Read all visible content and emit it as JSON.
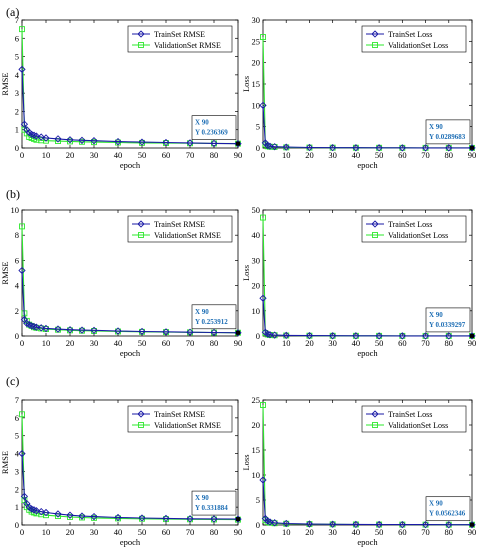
{
  "panels": [
    {
      "label": "(a)"
    },
    {
      "label": "(b)"
    },
    {
      "label": "(c)"
    }
  ],
  "colors": {
    "train": "#1a1aa6",
    "validation": "#2ee82e",
    "axis": "#000000",
    "tooltip_text": "#1f6fb5"
  },
  "chart_data": [
    {
      "type": "line",
      "panel": "(a)",
      "title": "",
      "xlabel": "epoch",
      "ylabel": "RMSE",
      "xlim": [
        0,
        90
      ],
      "ylim": [
        0,
        7
      ],
      "xticks": [
        0,
        10,
        20,
        30,
        40,
        50,
        60,
        70,
        80,
        90
      ],
      "yticks": [
        0,
        1,
        2,
        3,
        4,
        5,
        6,
        7
      ],
      "legend": "top-right",
      "series": [
        {
          "name": "TrainSet RMSE",
          "marker": "diamond",
          "x": [
            0,
            1,
            2,
            3,
            4,
            5,
            6,
            8,
            10,
            15,
            20,
            25,
            30,
            40,
            50,
            60,
            70,
            80,
            90
          ],
          "y": [
            4.3,
            1.3,
            1.0,
            0.85,
            0.75,
            0.7,
            0.65,
            0.6,
            0.55,
            0.5,
            0.45,
            0.42,
            0.4,
            0.35,
            0.32,
            0.3,
            0.28,
            0.25,
            0.236
          ]
        },
        {
          "name": "ValidationSet RMSE",
          "marker": "square",
          "x": [
            0,
            1,
            2,
            3,
            4,
            5,
            6,
            8,
            10,
            15,
            20,
            25,
            30,
            40,
            50,
            60,
            70,
            80,
            90
          ],
          "y": [
            6.5,
            1.0,
            0.8,
            0.6,
            0.55,
            0.5,
            0.45,
            0.42,
            0.4,
            0.38,
            0.36,
            0.34,
            0.32,
            0.3,
            0.28,
            0.27,
            0.26,
            0.25,
            0.24
          ]
        }
      ],
      "datatip": {
        "x": "X 90",
        "y": "Y 0.236369"
      }
    },
    {
      "type": "line",
      "panel": "(a)",
      "title": "",
      "xlabel": "epoch",
      "ylabel": "Loss",
      "xlim": [
        0,
        90
      ],
      "ylim": [
        0,
        30
      ],
      "xticks": [
        0,
        10,
        20,
        30,
        40,
        50,
        60,
        70,
        80,
        90
      ],
      "yticks": [
        0,
        5,
        10,
        15,
        20,
        25,
        30
      ],
      "legend": "top-right",
      "series": [
        {
          "name": "TrainSet Loss",
          "marker": "diamond",
          "x": [
            0,
            1,
            2,
            3,
            5,
            10,
            20,
            30,
            40,
            50,
            60,
            70,
            80,
            90
          ],
          "y": [
            10.0,
            1.2,
            0.6,
            0.4,
            0.3,
            0.2,
            0.12,
            0.08,
            0.06,
            0.05,
            0.04,
            0.035,
            0.03,
            0.029
          ]
        },
        {
          "name": "ValidationSet Loss",
          "marker": "square",
          "x": [
            0,
            1,
            2,
            3,
            5,
            10,
            20,
            30,
            40,
            50,
            60,
            70,
            80,
            90
          ],
          "y": [
            26.0,
            0.8,
            0.4,
            0.3,
            0.25,
            0.15,
            0.1,
            0.08,
            0.06,
            0.05,
            0.04,
            0.035,
            0.03,
            0.03
          ]
        }
      ],
      "datatip": {
        "x": "X 90",
        "y": "Y 0.0289683"
      }
    },
    {
      "type": "line",
      "panel": "(b)",
      "title": "",
      "xlabel": "epoch",
      "ylabel": "RMSE",
      "xlim": [
        0,
        90
      ],
      "ylim": [
        0,
        10
      ],
      "xticks": [
        0,
        10,
        20,
        30,
        40,
        50,
        60,
        70,
        80,
        90
      ],
      "yticks": [
        0,
        2,
        4,
        6,
        8,
        10
      ],
      "legend": "top-right",
      "series": [
        {
          "name": "TrainSet RMSE",
          "marker": "diamond",
          "x": [
            0,
            1,
            2,
            3,
            4,
            5,
            6,
            8,
            10,
            15,
            20,
            25,
            30,
            40,
            50,
            60,
            70,
            80,
            90
          ],
          "y": [
            5.2,
            1.3,
            1.0,
            0.9,
            0.8,
            0.75,
            0.7,
            0.65,
            0.6,
            0.55,
            0.5,
            0.47,
            0.45,
            0.4,
            0.36,
            0.33,
            0.3,
            0.28,
            0.254
          ]
        },
        {
          "name": "ValidationSet RMSE",
          "marker": "square",
          "x": [
            0,
            1,
            2,
            3,
            4,
            5,
            6,
            8,
            10,
            15,
            20,
            25,
            30,
            40,
            50,
            60,
            70,
            80,
            90
          ],
          "y": [
            8.7,
            1.8,
            1.2,
            0.9,
            0.8,
            0.7,
            0.65,
            0.6,
            0.55,
            0.5,
            0.45,
            0.42,
            0.4,
            0.36,
            0.33,
            0.31,
            0.29,
            0.27,
            0.26
          ]
        }
      ],
      "datatip": {
        "x": "X 90",
        "y": "Y 0.253912"
      }
    },
    {
      "type": "line",
      "panel": "(b)",
      "title": "",
      "xlabel": "epoch",
      "ylabel": "Loss",
      "xlim": [
        0,
        90
      ],
      "ylim": [
        0,
        50
      ],
      "xticks": [
        0,
        10,
        20,
        30,
        40,
        50,
        60,
        70,
        80,
        90
      ],
      "yticks": [
        0,
        10,
        20,
        30,
        40,
        50
      ],
      "legend": "top-right",
      "series": [
        {
          "name": "TrainSet Loss",
          "marker": "diamond",
          "x": [
            0,
            1,
            2,
            3,
            5,
            10,
            20,
            30,
            40,
            50,
            60,
            70,
            80,
            90
          ],
          "y": [
            15.0,
            1.5,
            0.8,
            0.5,
            0.35,
            0.25,
            0.15,
            0.1,
            0.08,
            0.06,
            0.05,
            0.04,
            0.036,
            0.034
          ]
        },
        {
          "name": "ValidationSet Loss",
          "marker": "square",
          "x": [
            0,
            1,
            2,
            3,
            5,
            10,
            20,
            30,
            40,
            50,
            60,
            70,
            80,
            90
          ],
          "y": [
            47.0,
            1.2,
            0.6,
            0.4,
            0.3,
            0.2,
            0.12,
            0.09,
            0.07,
            0.06,
            0.05,
            0.045,
            0.04,
            0.04
          ]
        }
      ],
      "datatip": {
        "x": "X 90",
        "y": "Y 0.0339297"
      }
    },
    {
      "type": "line",
      "panel": "(c)",
      "title": "",
      "xlabel": "epoch",
      "ylabel": "RMSE",
      "xlim": [
        0,
        90
      ],
      "ylim": [
        0,
        7
      ],
      "xticks": [
        0,
        10,
        20,
        30,
        40,
        50,
        60,
        70,
        80,
        90
      ],
      "yticks": [
        0,
        1,
        2,
        3,
        4,
        5,
        6,
        7
      ],
      "legend": "top-right",
      "series": [
        {
          "name": "TrainSet RMSE",
          "marker": "diamond",
          "x": [
            0,
            1,
            2,
            3,
            4,
            5,
            6,
            8,
            10,
            15,
            20,
            25,
            30,
            40,
            50,
            60,
            70,
            80,
            90
          ],
          "y": [
            4.0,
            1.6,
            1.2,
            1.0,
            0.9,
            0.85,
            0.8,
            0.75,
            0.7,
            0.62,
            0.55,
            0.5,
            0.47,
            0.42,
            0.39,
            0.37,
            0.35,
            0.34,
            0.332
          ]
        },
        {
          "name": "ValidationSet RMSE",
          "marker": "square",
          "x": [
            0,
            1,
            2,
            3,
            4,
            5,
            6,
            8,
            10,
            15,
            20,
            25,
            30,
            40,
            50,
            60,
            70,
            80,
            90
          ],
          "y": [
            6.2,
            1.4,
            1.0,
            0.85,
            0.75,
            0.7,
            0.65,
            0.6,
            0.55,
            0.5,
            0.45,
            0.42,
            0.4,
            0.37,
            0.35,
            0.33,
            0.32,
            0.31,
            0.3
          ]
        }
      ],
      "datatip": {
        "x": "X 90",
        "y": "Y 0.331884"
      }
    },
    {
      "type": "line",
      "panel": "(c)",
      "title": "",
      "xlabel": "epoch",
      "ylabel": "Loss",
      "xlim": [
        0,
        90
      ],
      "ylim": [
        0,
        25
      ],
      "xticks": [
        0,
        10,
        20,
        30,
        40,
        50,
        60,
        70,
        80,
        90
      ],
      "yticks": [
        0,
        5,
        10,
        15,
        20,
        25
      ],
      "legend": "top-right",
      "series": [
        {
          "name": "TrainSet Loss",
          "marker": "diamond",
          "x": [
            0,
            1,
            2,
            3,
            5,
            10,
            20,
            30,
            40,
            50,
            60,
            70,
            80,
            90
          ],
          "y": [
            9.0,
            1.3,
            0.8,
            0.6,
            0.45,
            0.3,
            0.2,
            0.15,
            0.12,
            0.1,
            0.08,
            0.07,
            0.06,
            0.056
          ]
        },
        {
          "name": "ValidationSet Loss",
          "marker": "square",
          "x": [
            0,
            1,
            2,
            3,
            5,
            10,
            20,
            30,
            40,
            50,
            60,
            70,
            80,
            90
          ],
          "y": [
            24.0,
            1.0,
            0.6,
            0.45,
            0.35,
            0.25,
            0.18,
            0.14,
            0.11,
            0.09,
            0.08,
            0.07,
            0.065,
            0.06
          ]
        }
      ],
      "datatip": {
        "x": "X 90",
        "y": "Y 0.0562346"
      }
    }
  ]
}
